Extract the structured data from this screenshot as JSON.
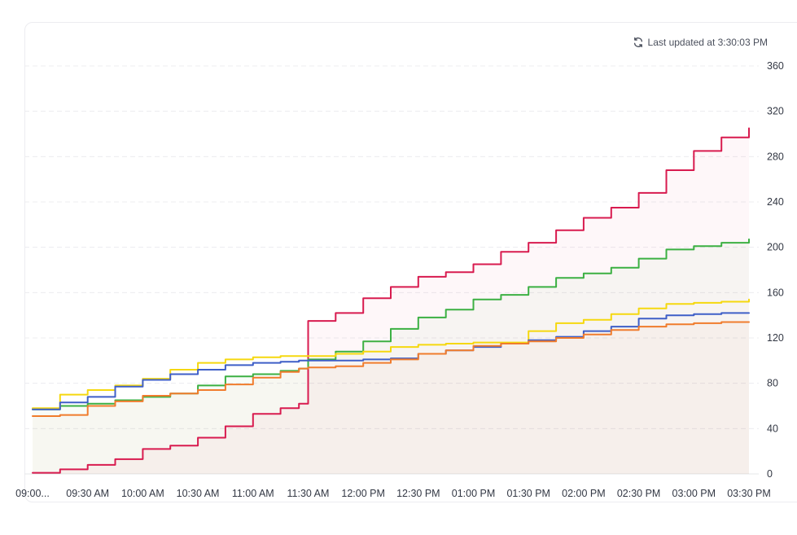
{
  "header": {
    "last_updated": "Last updated at 3:30:03 PM",
    "refresh_icon": "refresh-icon"
  },
  "chart_data": {
    "type": "line",
    "title": "",
    "xlabel": "",
    "ylabel": "",
    "ylim": [
      0,
      360
    ],
    "yticks": [
      0,
      40,
      80,
      120,
      160,
      200,
      240,
      280,
      320,
      360
    ],
    "y_axis_side": "right",
    "grid": "horizontal dashed",
    "x_tick_labels": [
      "09:00...",
      "09:30 AM",
      "10:00 AM",
      "10:30 AM",
      "11:00 AM",
      "11:30 AM",
      "12:00 PM",
      "12:30 PM",
      "01:00 PM",
      "01:30 PM",
      "02:00 PM",
      "02:30 PM",
      "03:00 PM",
      "03:30 PM"
    ],
    "x": [
      "09:00",
      "09:15",
      "09:30",
      "09:45",
      "10:00",
      "10:15",
      "10:30",
      "10:45",
      "11:00",
      "11:15",
      "11:25",
      "11:30",
      "11:45",
      "12:00",
      "12:15",
      "12:30",
      "12:45",
      "13:00",
      "13:15",
      "13:30",
      "13:45",
      "14:00",
      "14:15",
      "14:30",
      "14:45",
      "15:00",
      "15:15",
      "15:30"
    ],
    "series": [
      {
        "color": "#d81b4f",
        "fill": true,
        "values": [
          1,
          4,
          8,
          13,
          22,
          25,
          32,
          42,
          53,
          58,
          62,
          135,
          142,
          155,
          165,
          174,
          178,
          185,
          196,
          204,
          215,
          226,
          235,
          248,
          268,
          285,
          297,
          305
        ]
      },
      {
        "color": "#3cb043",
        "fill": true,
        "values": [
          57,
          60,
          62,
          65,
          68,
          71,
          78,
          86,
          88,
          91,
          93,
          101,
          108,
          117,
          128,
          138,
          145,
          154,
          158,
          165,
          173,
          177,
          182,
          190,
          198,
          201,
          204,
          207
        ]
      },
      {
        "color": "#f5d80f",
        "fill": false,
        "values": [
          58,
          70,
          74,
          78,
          84,
          92,
          98,
          101,
          103,
          104,
          104,
          104,
          106,
          108,
          112,
          114,
          115,
          116,
          116,
          126,
          133,
          136,
          141,
          146,
          150,
          151,
          152,
          154
        ]
      },
      {
        "color": "#3f5fc7",
        "fill": false,
        "values": [
          57,
          63,
          68,
          77,
          83,
          88,
          92,
          96,
          98,
          99,
          100,
          100,
          100,
          101,
          102,
          106,
          109,
          112,
          115,
          118,
          121,
          126,
          130,
          137,
          140,
          141,
          142,
          142
        ]
      },
      {
        "color": "#f07c2d",
        "fill": true,
        "values": [
          51,
          52,
          60,
          64,
          69,
          71,
          74,
          79,
          85,
          90,
          93,
          94,
          95,
          98,
          101,
          106,
          109,
          113,
          115,
          117,
          120,
          123,
          127,
          130,
          132,
          133,
          134,
          134
        ]
      }
    ]
  }
}
